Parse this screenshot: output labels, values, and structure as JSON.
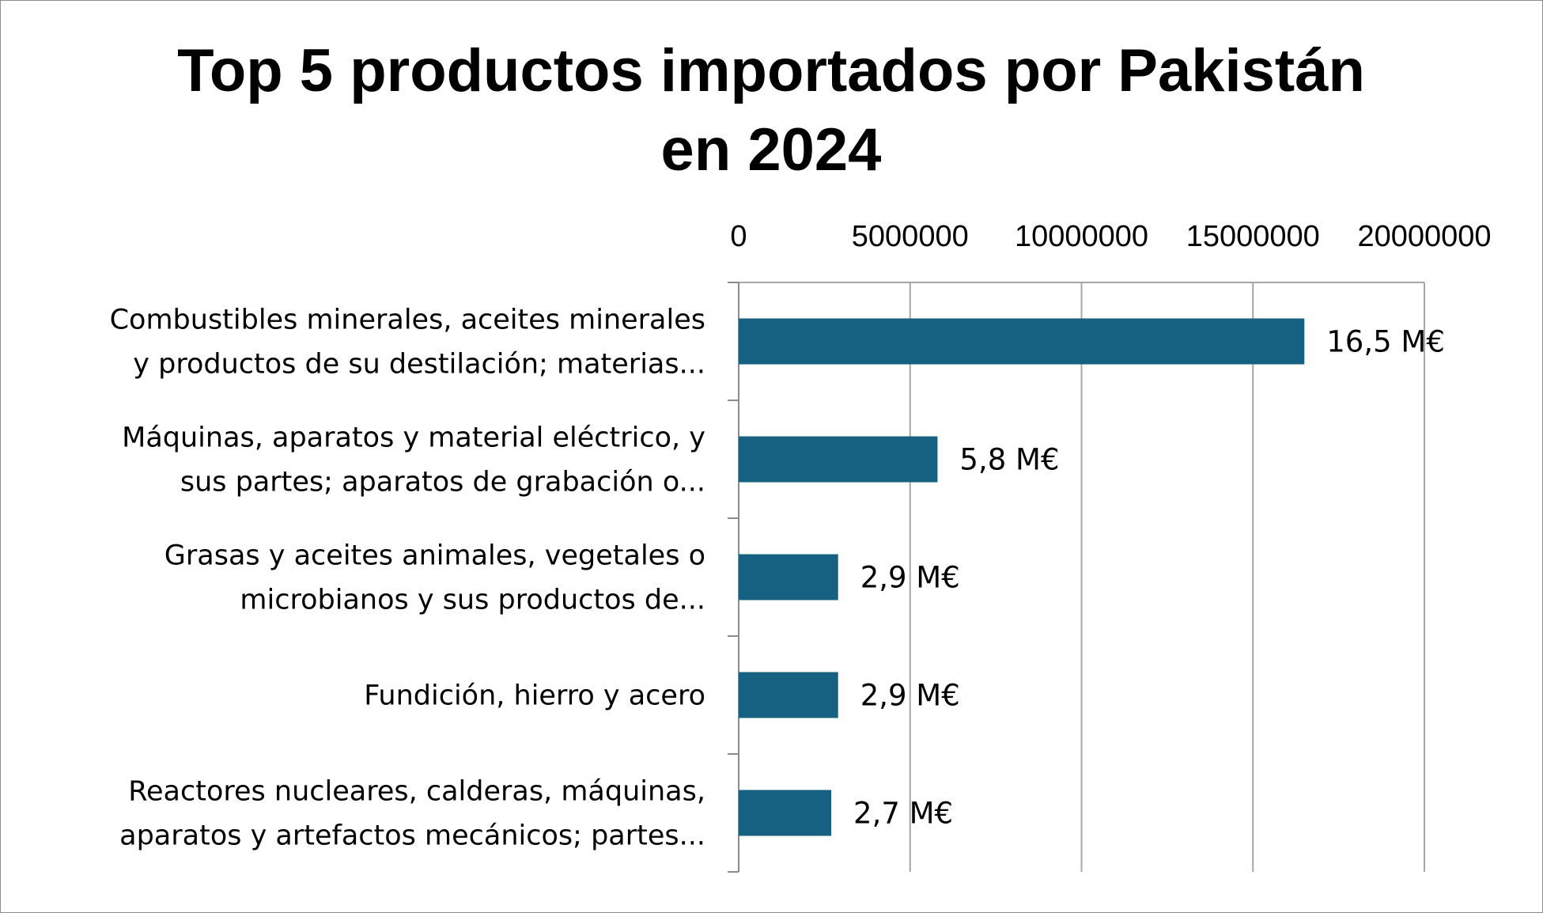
{
  "chart_data": {
    "type": "bar",
    "orientation": "horizontal",
    "title_lines": [
      "Top 5 productos importados por Pakistán",
      "en 2024"
    ],
    "categories": [
      [
        "Combustibles minerales, aceites minerales",
        "y productos de su destilación; materias..."
      ],
      [
        "Máquinas, aparatos y material eléctrico, y",
        "sus partes; aparatos de grabación o..."
      ],
      [
        "Grasas y aceites animales, vegetales o",
        "microbianos y sus productos de..."
      ],
      [
        "Fundición, hierro y acero"
      ],
      [
        "Reactores nucleares, calderas, máquinas,",
        "aparatos y artefactos mecánicos; partes..."
      ]
    ],
    "values": [
      16500000,
      5800000,
      2900000,
      2900000,
      2700000
    ],
    "data_labels": [
      "16,5 M€",
      "5,8 M€",
      "2,9 M€",
      "2,9 M€",
      "2,7 M€"
    ],
    "x_ticks": [
      "0",
      "5000000",
      "10000000",
      "15000000",
      "20000000"
    ],
    "xlim": [
      0,
      20000000
    ],
    "x_axis_position": "top",
    "gridlines": true,
    "legend": "none",
    "colors": {
      "bar": "#166082",
      "grid": "#a6a6a6",
      "axis": "#8c8c8c"
    }
  }
}
